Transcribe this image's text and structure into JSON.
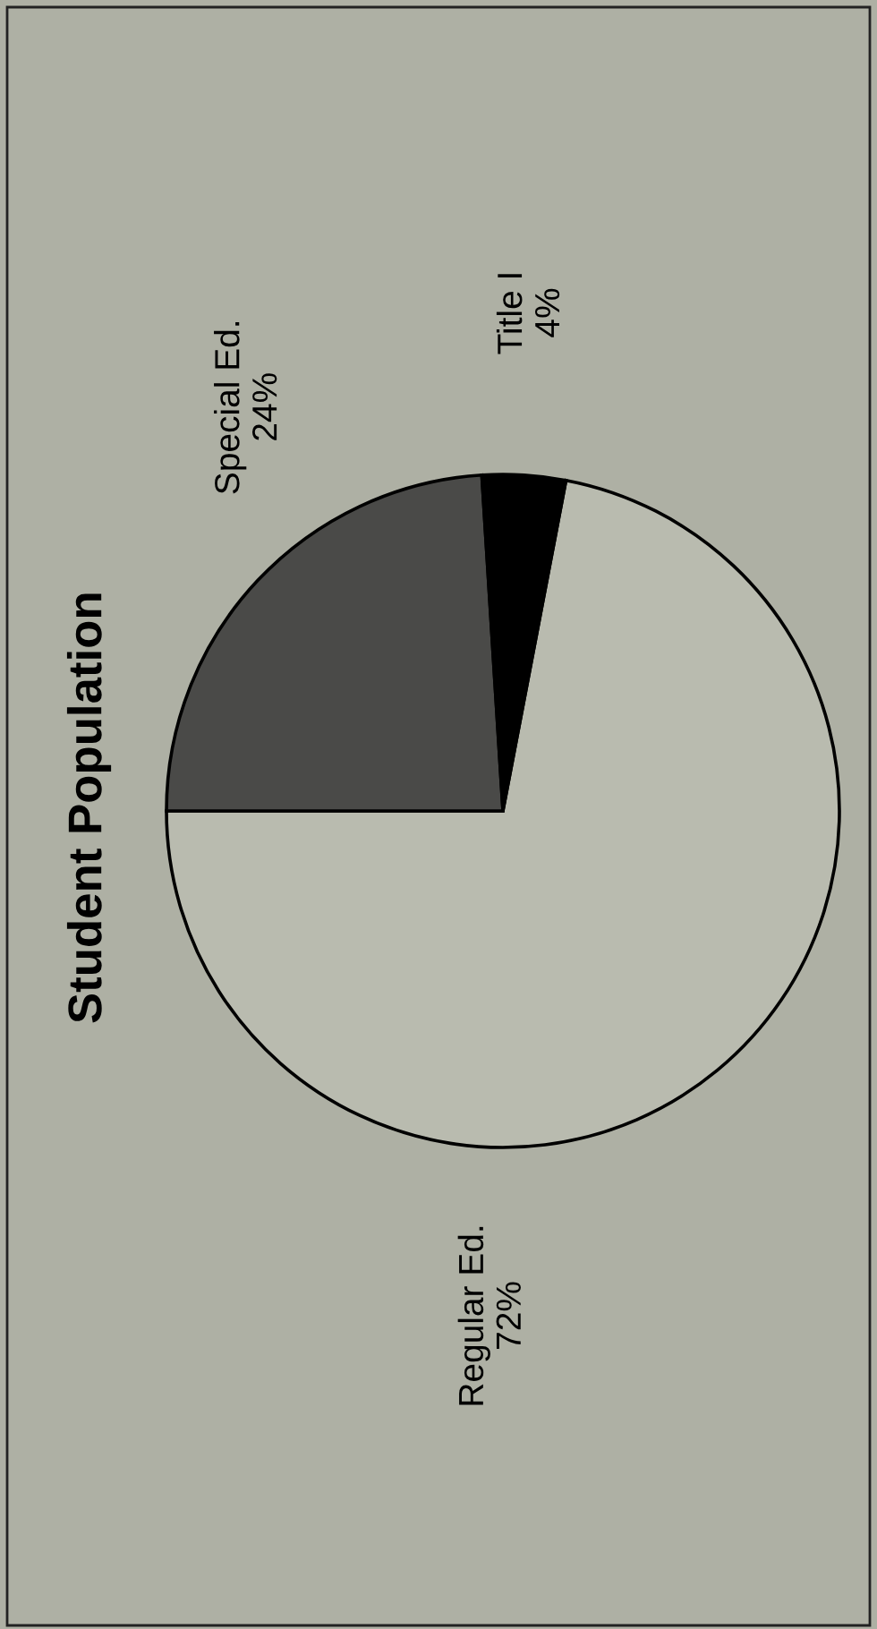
{
  "chart_data": {
    "type": "pie",
    "title": "Student Population",
    "categories": [
      "Regular Ed.",
      "Special Ed.",
      "Title I"
    ],
    "values": [
      72,
      24,
      4
    ],
    "colors": [
      "#b9bbaf",
      "#4a4a48",
      "#000000"
    ],
    "value_labels": [
      "72%",
      "24%",
      "4%"
    ]
  }
}
